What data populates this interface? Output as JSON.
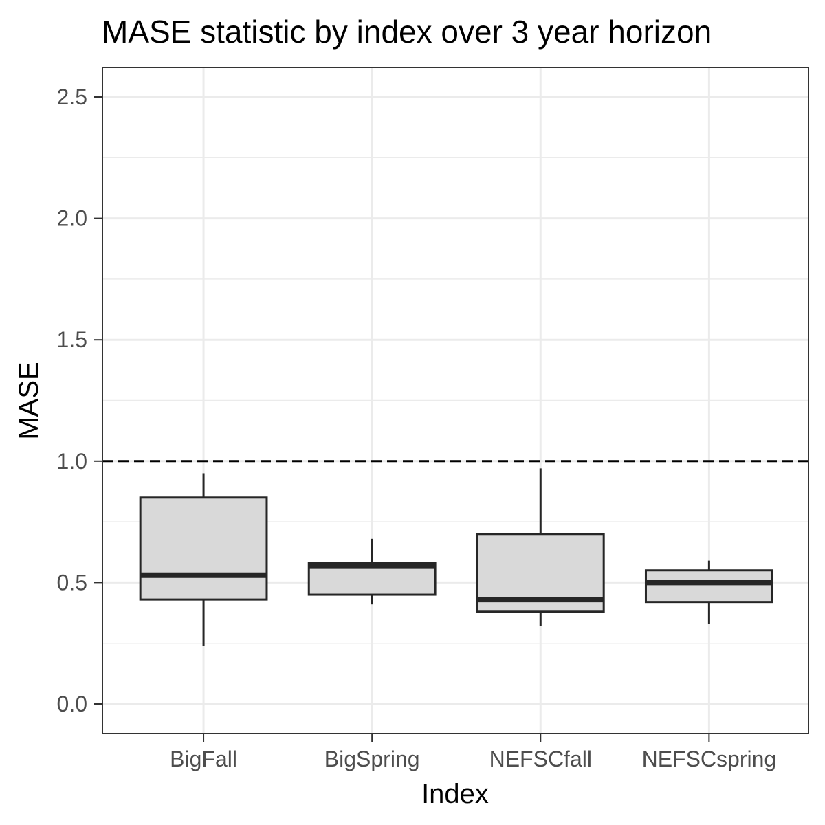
{
  "chart_data": {
    "type": "boxplot",
    "title": "MASE statistic by index over 3 year horizon",
    "xlabel": "Index",
    "ylabel": "MASE",
    "categories": [
      "BigFall",
      "BigSpring",
      "NEFSCfall",
      "NEFSCspring"
    ],
    "boxes": [
      {
        "category": "BigFall",
        "whisker_low": 0.24,
        "q1": 0.43,
        "median": 0.53,
        "q3": 0.85,
        "whisker_high": 0.95
      },
      {
        "category": "BigSpring",
        "whisker_low": 0.41,
        "q1": 0.45,
        "median": 0.57,
        "q3": 0.58,
        "whisker_high": 0.68
      },
      {
        "category": "NEFSCfall",
        "whisker_low": 0.32,
        "q1": 0.38,
        "median": 0.43,
        "q3": 0.7,
        "whisker_high": 0.97
      },
      {
        "category": "NEFSCspring",
        "whisker_low": 0.33,
        "q1": 0.42,
        "median": 0.5,
        "q3": 0.55,
        "whisker_high": 0.59
      }
    ],
    "reference_line": {
      "y": 1.0,
      "style": "dashed"
    },
    "ylim": [
      -0.12,
      2.62
    ],
    "yticks": [
      "0.0",
      "0.5",
      "1.0",
      "1.5",
      "2.0",
      "2.5"
    ],
    "grid": true,
    "colors": {
      "box_fill": "#d9d9d9",
      "box_stroke": "#262626",
      "grid": "#ebebeb",
      "panel_border": "#333333",
      "reference_line": "#000000"
    }
  }
}
